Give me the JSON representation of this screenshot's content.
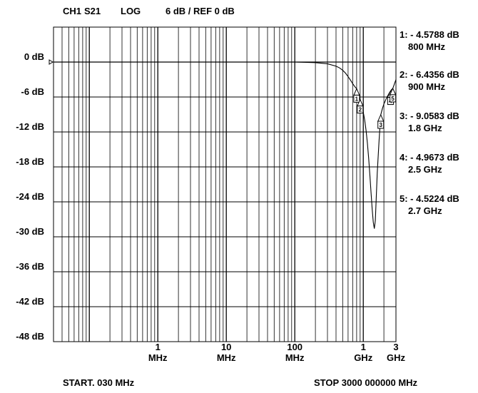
{
  "header": {
    "channel": "CH1",
    "param": "S21",
    "format": "LOG",
    "scale": "6 dB / REF 0 dB"
  },
  "footer": {
    "start_label": "START",
    "start_value": ". 030 MHz",
    "stop_label": "STOP",
    "stop_value": "3000 000000 MHz"
  },
  "markers": [
    {
      "label": "1: - 4.5788 dB",
      "freq": "800 MHz"
    },
    {
      "label": "2: - 6.4356 dB",
      "freq": "900 MHz"
    },
    {
      "label": "3: - 9.0583 dB",
      "freq": "1.8 GHz"
    },
    {
      "label": "4: - 4.9673 dB",
      "freq": "2.5 GHz"
    },
    {
      "label": "5: - 4.5224 dB",
      "freq": "2.7 GHz"
    }
  ],
  "colors": {
    "trace": "#000000",
    "grid": "#000000",
    "background": "#ffffff"
  },
  "chart_data": {
    "type": "line",
    "xscale": "log",
    "xlim_mhz": [
      0.03,
      3000
    ],
    "ylim_db": [
      -48,
      6
    ],
    "grid": true,
    "y_ticks": [
      {
        "v": 0,
        "label": "0 dB"
      },
      {
        "v": -6,
        "label": "-6 dB"
      },
      {
        "v": -12,
        "label": "-12 dB"
      },
      {
        "v": -18,
        "label": "-18 dB"
      },
      {
        "v": -24,
        "label": "-24 dB"
      },
      {
        "v": -30,
        "label": "-30 dB"
      },
      {
        "v": -36,
        "label": "-36 dB"
      },
      {
        "v": -42,
        "label": "-42 dB"
      },
      {
        "v": -48,
        "label": "-48 dB"
      }
    ],
    "x_ticks": [
      {
        "v": 1,
        "num": "1",
        "unit": "MHz"
      },
      {
        "v": 10,
        "num": "10",
        "unit": "MHz"
      },
      {
        "v": 100,
        "num": "100",
        "unit": "MHz"
      },
      {
        "v": 1000,
        "num": "1",
        "unit": "GHz"
      },
      {
        "v": 3000,
        "num": "3",
        "unit": "GHz"
      }
    ],
    "series": [
      {
        "x": [
          0.03,
          0.1,
          1,
          10,
          100,
          200,
          300,
          400,
          450,
          500,
          550,
          600,
          650,
          700,
          750,
          800,
          850,
          900,
          950,
          1000,
          1050,
          1100,
          1150,
          1200,
          1250,
          1300,
          1350,
          1400,
          1450,
          1500,
          1550,
          1600,
          1700,
          1800,
          1900,
          2000,
          2200,
          2400,
          2500,
          2600,
          2700,
          2800,
          2900,
          3000
        ],
        "y": [
          0,
          0,
          0,
          0,
          0,
          -0.1,
          -0.3,
          -0.7,
          -1.0,
          -1.4,
          -1.9,
          -2.5,
          -3.1,
          -3.7,
          -4.2,
          -4.58,
          -5.4,
          -6.44,
          -7.4,
          -8.6,
          -10.0,
          -11.8,
          -14.0,
          -16.6,
          -19.5,
          -22.5,
          -25.3,
          -27.5,
          -28.6,
          -27.2,
          -23.0,
          -19.0,
          -13.5,
          -9.06,
          -8.0,
          -7.2,
          -6.1,
          -5.3,
          -4.97,
          -4.7,
          -4.52,
          -4.0,
          -3.5,
          -3.0
        ]
      }
    ],
    "marker_points": [
      {
        "n": "1",
        "x": 800,
        "y": -4.5788
      },
      {
        "n": "2",
        "x": 900,
        "y": -6.4356
      },
      {
        "n": "3",
        "x": 1800,
        "y": -9.0583
      },
      {
        "n": "4",
        "x": 2500,
        "y": -4.9673
      },
      {
        "n": "5",
        "x": 2700,
        "y": -4.5224
      }
    ]
  }
}
